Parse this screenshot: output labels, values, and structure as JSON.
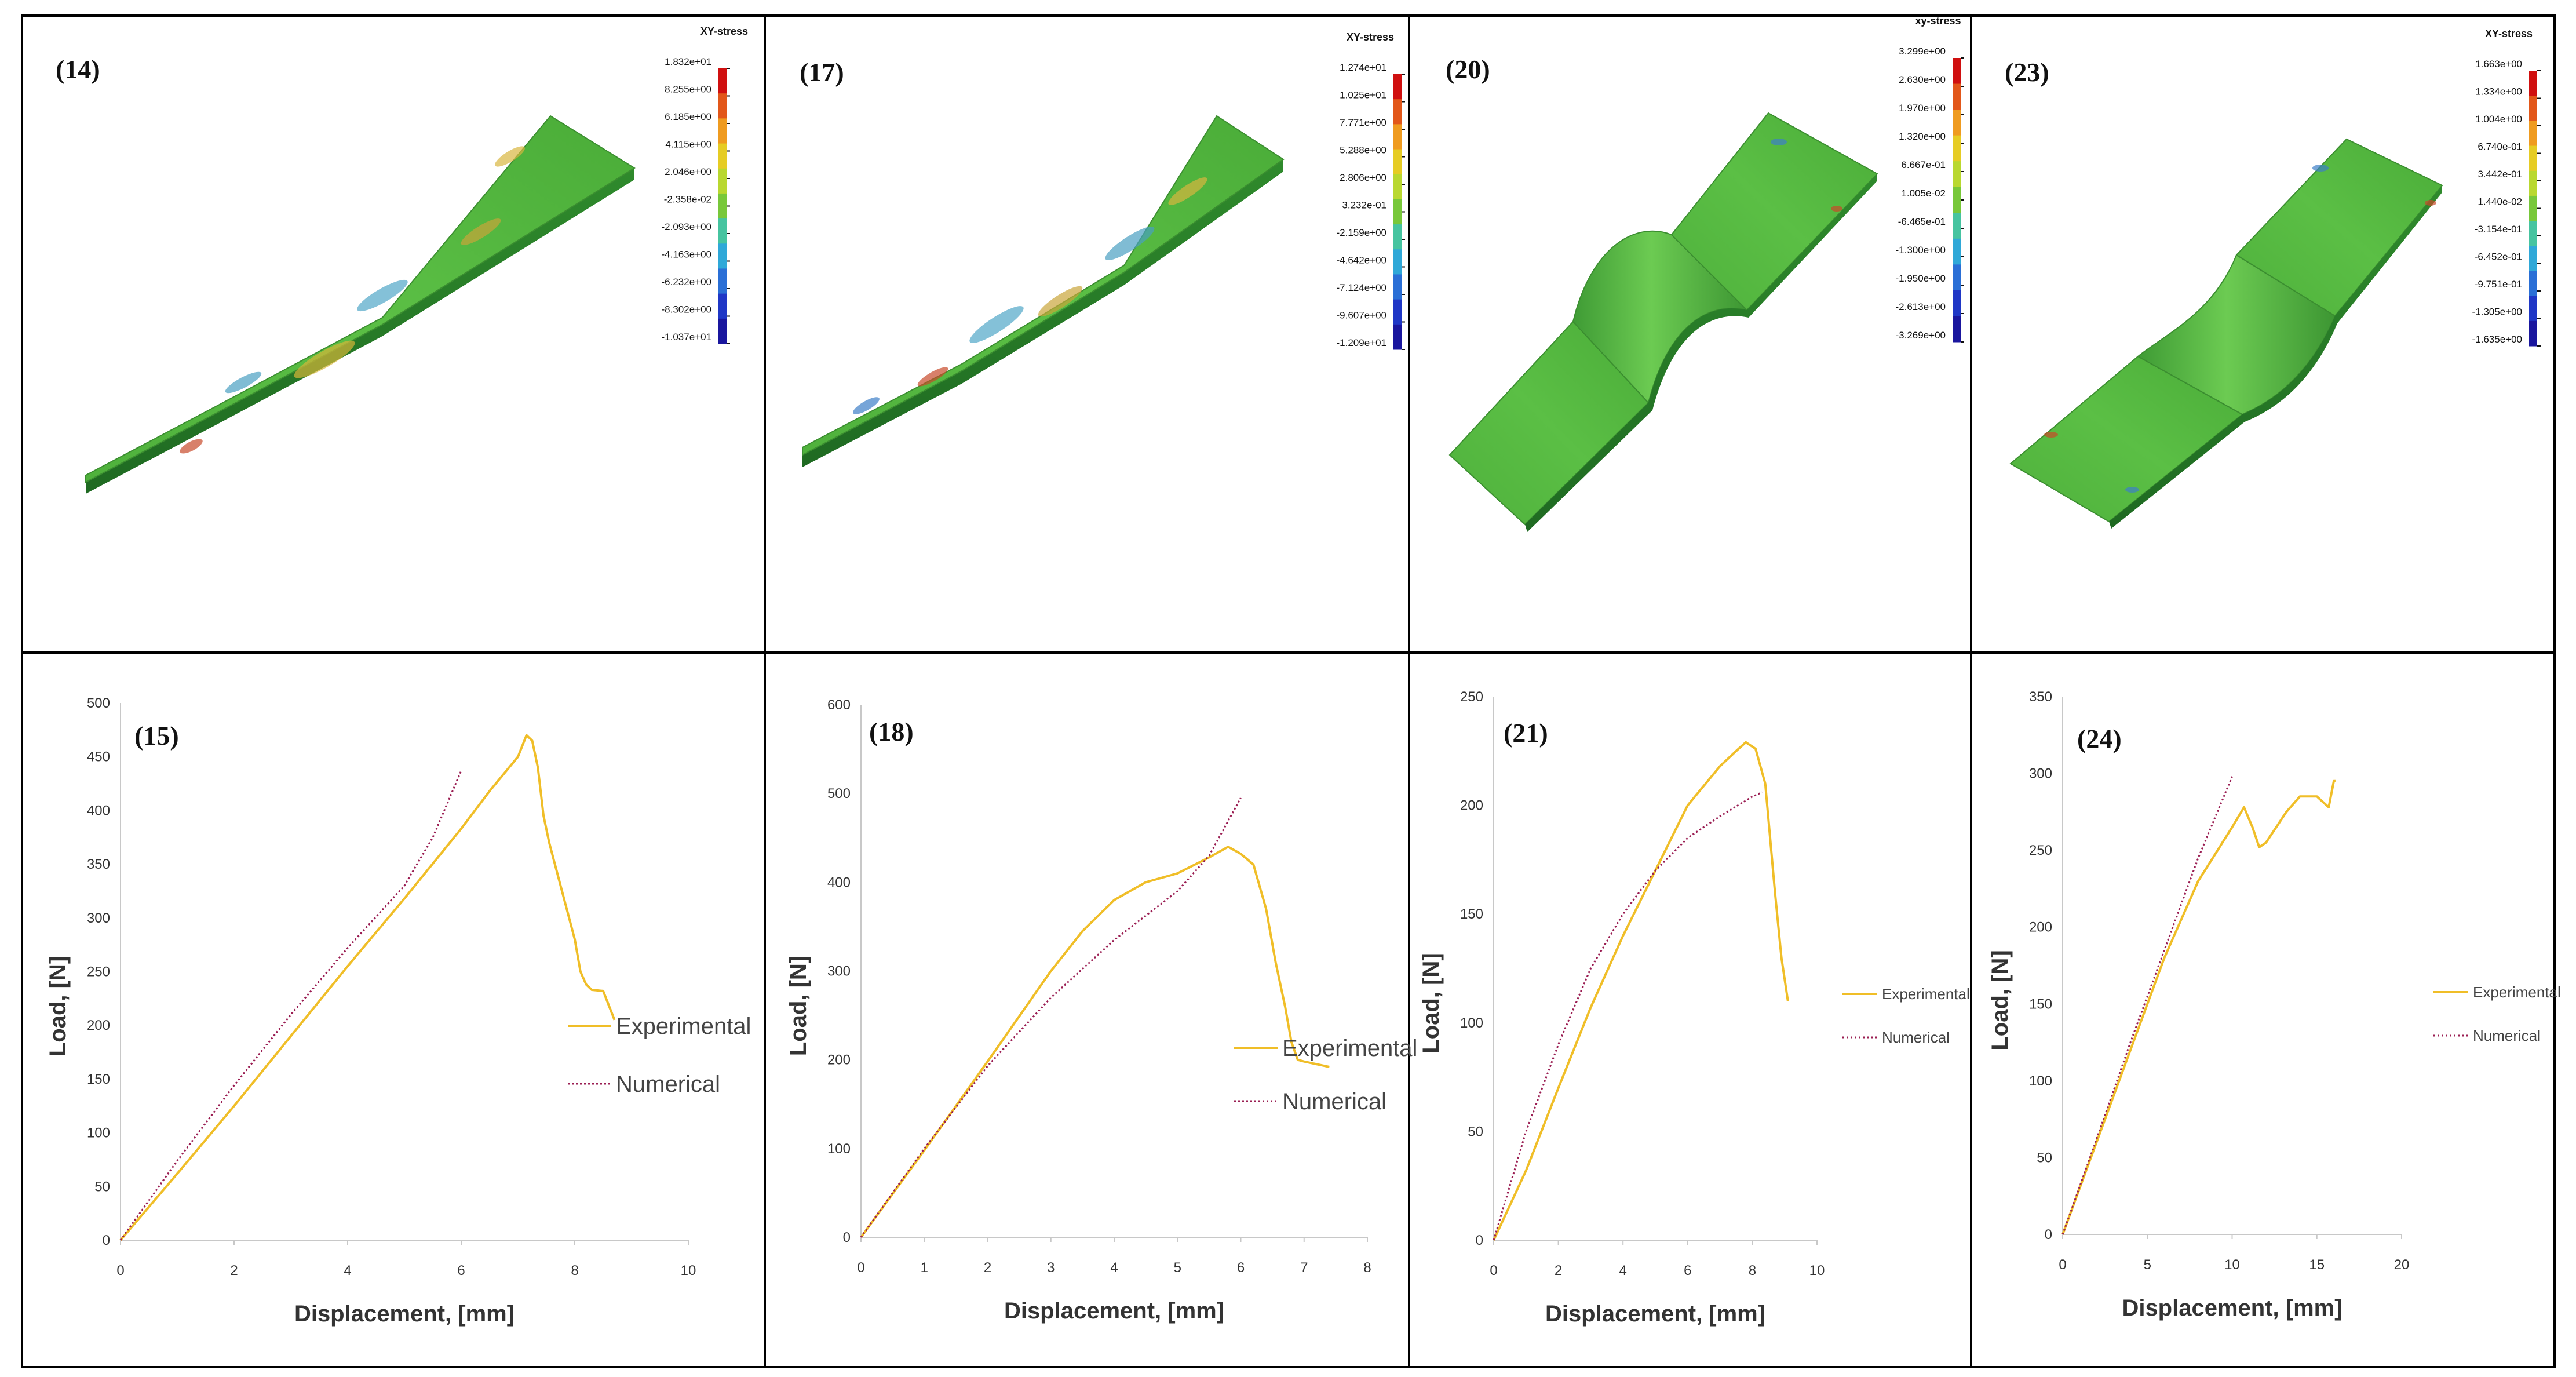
{
  "fem_panels": [
    {
      "label": "(14)",
      "colorbar_title": "XY-stress",
      "colorbar_values": [
        "1.832e+01",
        "8.255e+00",
        "6.185e+00",
        "4.115e+00",
        "2.046e+00",
        "-2.358e-02",
        "-2.093e+00",
        "-4.163e+00",
        "-6.232e+00",
        "-8.302e+00",
        "-1.037e+01"
      ]
    },
    {
      "label": "(17)",
      "colorbar_title": "XY-stress",
      "colorbar_values": [
        "1.274e+01",
        "1.025e+01",
        "7.771e+00",
        "5.288e+00",
        "2.806e+00",
        "3.232e-01",
        "-2.159e+00",
        "-4.642e+00",
        "-7.124e+00",
        "-9.607e+00",
        "-1.209e+01"
      ]
    },
    {
      "label": "(20)",
      "colorbar_title": "xy-stress",
      "colorbar_values": [
        "3.299e+00",
        "2.630e+00",
        "1.970e+00",
        "1.320e+00",
        "6.667e-01",
        "1.005e-02",
        "-6.465e-01",
        "-1.300e+00",
        "-1.950e+00",
        "-2.613e+00",
        "-3.269e+00"
      ]
    },
    {
      "label": "(23)",
      "colorbar_title": "XY-stress",
      "colorbar_values": [
        "1.663e+00",
        "1.334e+00",
        "1.004e+00",
        "6.740e-01",
        "3.442e-01",
        "1.440e-02",
        "-3.154e-01",
        "-6.452e-01",
        "-9.751e-01",
        "-1.305e+00",
        "-1.635e+00"
      ]
    }
  ],
  "colorbar_colors": [
    "#d01010",
    "#e2571a",
    "#ef9b20",
    "#e6cc24",
    "#b9d830",
    "#78c83a",
    "#46c4a0",
    "#2fa8d8",
    "#2a6fd6",
    "#1f37c6",
    "#1a169e"
  ],
  "series_colors": {
    "experimental": "#f0be28",
    "numerical": "#9a1d52"
  },
  "chart_data": [
    {
      "type": "line",
      "panel_label": "(15)",
      "xlabel": "Displacement, [mm]",
      "ylabel": "Load, [N]",
      "xlim": [
        0,
        10
      ],
      "ylim": [
        0,
        500
      ],
      "xticks": [
        0,
        2,
        4,
        6,
        8,
        10
      ],
      "yticks": [
        0,
        50,
        100,
        150,
        200,
        250,
        300,
        350,
        400,
        450,
        500
      ],
      "legend_size": "large",
      "series": [
        {
          "name": "Experimental",
          "style": "solid",
          "x": [
            0,
            1,
            2,
            3,
            4,
            5,
            6,
            6.5,
            7,
            7.15,
            7.25,
            7.35,
            7.45,
            7.55,
            7.65,
            7.75,
            7.85,
            8.0,
            8.1,
            8.2,
            8.3,
            8.5,
            8.7
          ],
          "y": [
            0,
            62,
            125,
            190,
            255,
            318,
            383,
            418,
            450,
            470,
            465,
            440,
            395,
            370,
            350,
            330,
            310,
            280,
            250,
            238,
            233,
            232,
            205
          ]
        },
        {
          "name": "Numerical",
          "style": "dotted",
          "x": [
            0,
            1,
            2,
            3,
            4,
            5,
            5.5,
            6
          ],
          "y": [
            0,
            74,
            144,
            210,
            272,
            330,
            375,
            437
          ]
        }
      ]
    },
    {
      "type": "line",
      "panel_label": "(18)",
      "xlabel": "Displacement, [mm]",
      "ylabel": "Load, [N]",
      "xlim": [
        0,
        8
      ],
      "ylim": [
        0,
        600
      ],
      "xticks": [
        0,
        1,
        2,
        3,
        4,
        5,
        6,
        7,
        8
      ],
      "yticks": [
        0,
        100,
        200,
        300,
        400,
        500,
        600
      ],
      "legend_size": "large",
      "series": [
        {
          "name": "Experimental",
          "style": "solid",
          "x": [
            0,
            1,
            2,
            3,
            3.5,
            4,
            4.5,
            5,
            5.5,
            5.8,
            6.0,
            6.2,
            6.4,
            6.55,
            6.7,
            6.8,
            6.9,
            7.0,
            7.2,
            7.4
          ],
          "y": [
            0,
            98,
            198,
            300,
            345,
            380,
            400,
            410,
            428,
            440,
            432,
            420,
            370,
            310,
            260,
            220,
            200,
            198,
            195,
            192
          ]
        },
        {
          "name": "Numerical",
          "style": "dotted",
          "x": [
            0,
            1,
            2,
            3,
            4,
            5,
            5.5,
            6
          ],
          "y": [
            0,
            100,
            193,
            270,
            335,
            390,
            430,
            495
          ]
        }
      ]
    },
    {
      "type": "line",
      "panel_label": "(21)",
      "xlabel": "Displacement, [mm]",
      "ylabel": "Load, [N]",
      "xlim": [
        0,
        10
      ],
      "ylim": [
        0,
        250
      ],
      "xticks": [
        0,
        2,
        4,
        6,
        8,
        10
      ],
      "yticks": [
        0,
        50,
        100,
        150,
        200,
        250
      ],
      "legend_size": "small",
      "series": [
        {
          "name": "Experimental",
          "style": "solid",
          "x": [
            0,
            1,
            2,
            3,
            4,
            5,
            6,
            7,
            7.5,
            7.8,
            8.1,
            8.4,
            8.7,
            8.9,
            9.1
          ],
          "y": [
            0,
            32,
            70,
            107,
            140,
            170,
            200,
            218,
            225,
            229,
            226,
            210,
            160,
            130,
            110
          ]
        },
        {
          "name": "Numerical",
          "style": "dotted",
          "x": [
            0,
            1,
            2,
            3,
            4,
            5,
            6,
            7,
            8,
            8.3
          ],
          "y": [
            0,
            50,
            90,
            125,
            150,
            170,
            185,
            195,
            204,
            206
          ]
        }
      ]
    },
    {
      "type": "line",
      "panel_label": "(24)",
      "xlabel": "Displacement, [mm]",
      "ylabel": "Load, [N]",
      "xlim": [
        0,
        20
      ],
      "ylim": [
        0,
        350
      ],
      "xticks": [
        0,
        5,
        10,
        15,
        20
      ],
      "yticks": [
        0,
        50,
        100,
        150,
        200,
        250,
        300,
        350
      ],
      "legend_size": "small",
      "series": [
        {
          "name": "Experimental",
          "style": "solid",
          "x": [
            0,
            2,
            4,
            6,
            8,
            10,
            10.7,
            11.2,
            11.6,
            12,
            12.6,
            13.2,
            14,
            15,
            15.5,
            15.7,
            16,
            16.1
          ],
          "y": [
            0,
            60,
            120,
            180,
            230,
            265,
            278,
            265,
            252,
            255,
            265,
            275,
            285,
            285,
            280,
            278,
            295,
            295
          ]
        },
        {
          "name": "Numerical",
          "style": "dotted",
          "x": [
            0,
            2,
            4,
            6,
            8,
            10
          ],
          "y": [
            0,
            62,
            125,
            185,
            245,
            298
          ]
        }
      ]
    }
  ]
}
